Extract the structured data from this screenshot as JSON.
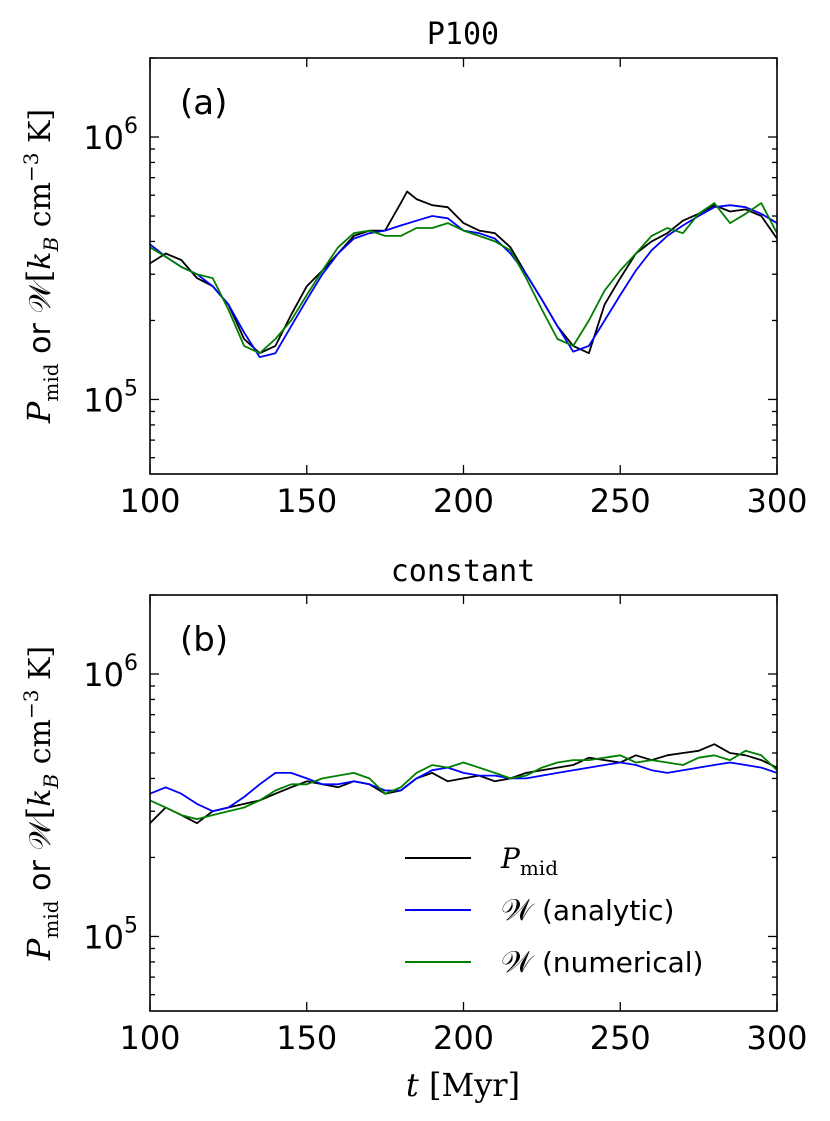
{
  "chart_data": [
    {
      "type": "line",
      "title": "P100",
      "panel_label": "(a)",
      "ylabel": "P_mid or W [k_B cm^-3 K]",
      "xlabel": "",
      "xlim": [
        100,
        300
      ],
      "ylim": [
        52000,
        2000000
      ],
      "yscale": "log",
      "xticks": [
        100,
        150,
        200,
        250,
        300
      ],
      "yticks": [
        {
          "value": 100000,
          "base": "10",
          "exp": "5"
        },
        {
          "value": 1000000,
          "base": "10",
          "exp": "6"
        }
      ],
      "grid": false,
      "series": [
        {
          "name": "P_mid",
          "color": "#000000",
          "x": [
            100,
            105,
            110,
            115,
            120,
            125,
            130,
            135,
            140,
            145,
            150,
            155,
            160,
            165,
            170,
            175,
            180,
            182,
            185,
            190,
            195,
            200,
            205,
            210,
            215,
            220,
            225,
            230,
            235,
            240,
            245,
            250,
            255,
            260,
            265,
            270,
            275,
            280,
            285,
            290,
            295,
            300
          ],
          "y": [
            330000,
            360000,
            340000,
            290000,
            270000,
            230000,
            170000,
            150000,
            160000,
            210000,
            270000,
            310000,
            360000,
            420000,
            440000,
            440000,
            560000,
            620000,
            580000,
            550000,
            540000,
            470000,
            440000,
            430000,
            380000,
            300000,
            240000,
            190000,
            160000,
            150000,
            230000,
            290000,
            360000,
            400000,
            430000,
            480000,
            510000,
            550000,
            520000,
            530000,
            500000,
            410000
          ]
        },
        {
          "name": "W (analytic)",
          "color": "#0000ff",
          "x": [
            100,
            105,
            110,
            115,
            120,
            125,
            130,
            135,
            140,
            145,
            150,
            155,
            160,
            165,
            170,
            175,
            180,
            185,
            190,
            195,
            200,
            205,
            210,
            215,
            220,
            225,
            230,
            235,
            240,
            245,
            250,
            255,
            260,
            265,
            270,
            275,
            280,
            285,
            290,
            295,
            300
          ],
          "y": [
            390000,
            350000,
            320000,
            300000,
            270000,
            230000,
            180000,
            145000,
            150000,
            190000,
            240000,
            300000,
            360000,
            410000,
            430000,
            440000,
            460000,
            480000,
            500000,
            490000,
            440000,
            430000,
            410000,
            360000,
            300000,
            240000,
            190000,
            152000,
            160000,
            200000,
            250000,
            310000,
            370000,
            420000,
            460000,
            500000,
            540000,
            550000,
            540000,
            510000,
            470000
          ]
        },
        {
          "name": "W (numerical)",
          "color": "#007f00",
          "x": [
            100,
            105,
            110,
            115,
            120,
            125,
            130,
            135,
            140,
            145,
            150,
            155,
            160,
            165,
            170,
            175,
            180,
            185,
            190,
            195,
            200,
            205,
            210,
            215,
            220,
            225,
            230,
            235,
            240,
            245,
            250,
            255,
            260,
            265,
            270,
            275,
            280,
            285,
            290,
            295,
            300
          ],
          "y": [
            380000,
            350000,
            320000,
            300000,
            290000,
            220000,
            160000,
            150000,
            170000,
            200000,
            250000,
            310000,
            380000,
            430000,
            440000,
            420000,
            420000,
            450000,
            450000,
            470000,
            440000,
            420000,
            400000,
            370000,
            290000,
            220000,
            170000,
            160000,
            200000,
            260000,
            310000,
            360000,
            420000,
            450000,
            430000,
            510000,
            560000,
            470000,
            510000,
            560000,
            430000
          ]
        }
      ]
    },
    {
      "type": "line",
      "title": "constant",
      "panel_label": "(b)",
      "ylabel": "P_mid or W [k_B cm^-3 K]",
      "xlabel": "t [Myr]",
      "xlim": [
        100,
        300
      ],
      "ylim": [
        52000,
        2000000
      ],
      "yscale": "log",
      "xticks": [
        100,
        150,
        200,
        250,
        300
      ],
      "yticks": [
        {
          "value": 100000,
          "base": "10",
          "exp": "5"
        },
        {
          "value": 1000000,
          "base": "10",
          "exp": "6"
        }
      ],
      "grid": false,
      "legend": {
        "placement": "lower-right",
        "entries": [
          "P_mid",
          "W (analytic)",
          "W (numerical)"
        ]
      },
      "series": [
        {
          "name": "P_mid",
          "color": "#000000",
          "x": [
            100,
            105,
            110,
            115,
            120,
            125,
            130,
            135,
            140,
            145,
            150,
            155,
            160,
            165,
            170,
            175,
            180,
            185,
            190,
            195,
            200,
            205,
            210,
            215,
            220,
            225,
            230,
            235,
            240,
            245,
            250,
            255,
            260,
            265,
            270,
            275,
            280,
            285,
            290,
            295,
            300
          ],
          "y": [
            270000,
            310000,
            290000,
            270000,
            300000,
            310000,
            320000,
            330000,
            350000,
            370000,
            390000,
            380000,
            370000,
            390000,
            380000,
            350000,
            360000,
            400000,
            420000,
            390000,
            400000,
            410000,
            390000,
            400000,
            420000,
            430000,
            440000,
            450000,
            480000,
            470000,
            460000,
            490000,
            470000,
            490000,
            500000,
            510000,
            540000,
            500000,
            490000,
            470000,
            440000
          ]
        },
        {
          "name": "W (analytic)",
          "color": "#0000ff",
          "x": [
            100,
            105,
            110,
            115,
            120,
            125,
            130,
            135,
            140,
            145,
            150,
            155,
            160,
            165,
            170,
            175,
            180,
            185,
            190,
            195,
            200,
            205,
            210,
            215,
            220,
            225,
            230,
            235,
            240,
            245,
            250,
            255,
            260,
            265,
            270,
            275,
            280,
            285,
            290,
            295,
            300
          ],
          "y": [
            350000,
            370000,
            350000,
            320000,
            300000,
            310000,
            340000,
            380000,
            420000,
            420000,
            400000,
            380000,
            380000,
            390000,
            380000,
            360000,
            360000,
            400000,
            430000,
            440000,
            420000,
            410000,
            410000,
            400000,
            400000,
            410000,
            420000,
            430000,
            440000,
            450000,
            460000,
            450000,
            430000,
            420000,
            430000,
            440000,
            450000,
            460000,
            450000,
            440000,
            420000
          ]
        },
        {
          "name": "W (numerical)",
          "color": "#007f00",
          "x": [
            100,
            105,
            110,
            115,
            120,
            125,
            130,
            135,
            140,
            145,
            150,
            155,
            160,
            165,
            170,
            175,
            180,
            185,
            190,
            195,
            200,
            205,
            210,
            215,
            220,
            225,
            230,
            235,
            240,
            245,
            250,
            255,
            260,
            265,
            270,
            275,
            280,
            285,
            290,
            295,
            300
          ],
          "y": [
            330000,
            310000,
            290000,
            280000,
            290000,
            300000,
            310000,
            330000,
            360000,
            380000,
            380000,
            400000,
            410000,
            420000,
            400000,
            350000,
            370000,
            420000,
            450000,
            440000,
            460000,
            440000,
            420000,
            400000,
            410000,
            440000,
            460000,
            470000,
            470000,
            480000,
            490000,
            460000,
            470000,
            460000,
            450000,
            480000,
            490000,
            470000,
            510000,
            490000,
            430000
          ]
        }
      ]
    }
  ]
}
